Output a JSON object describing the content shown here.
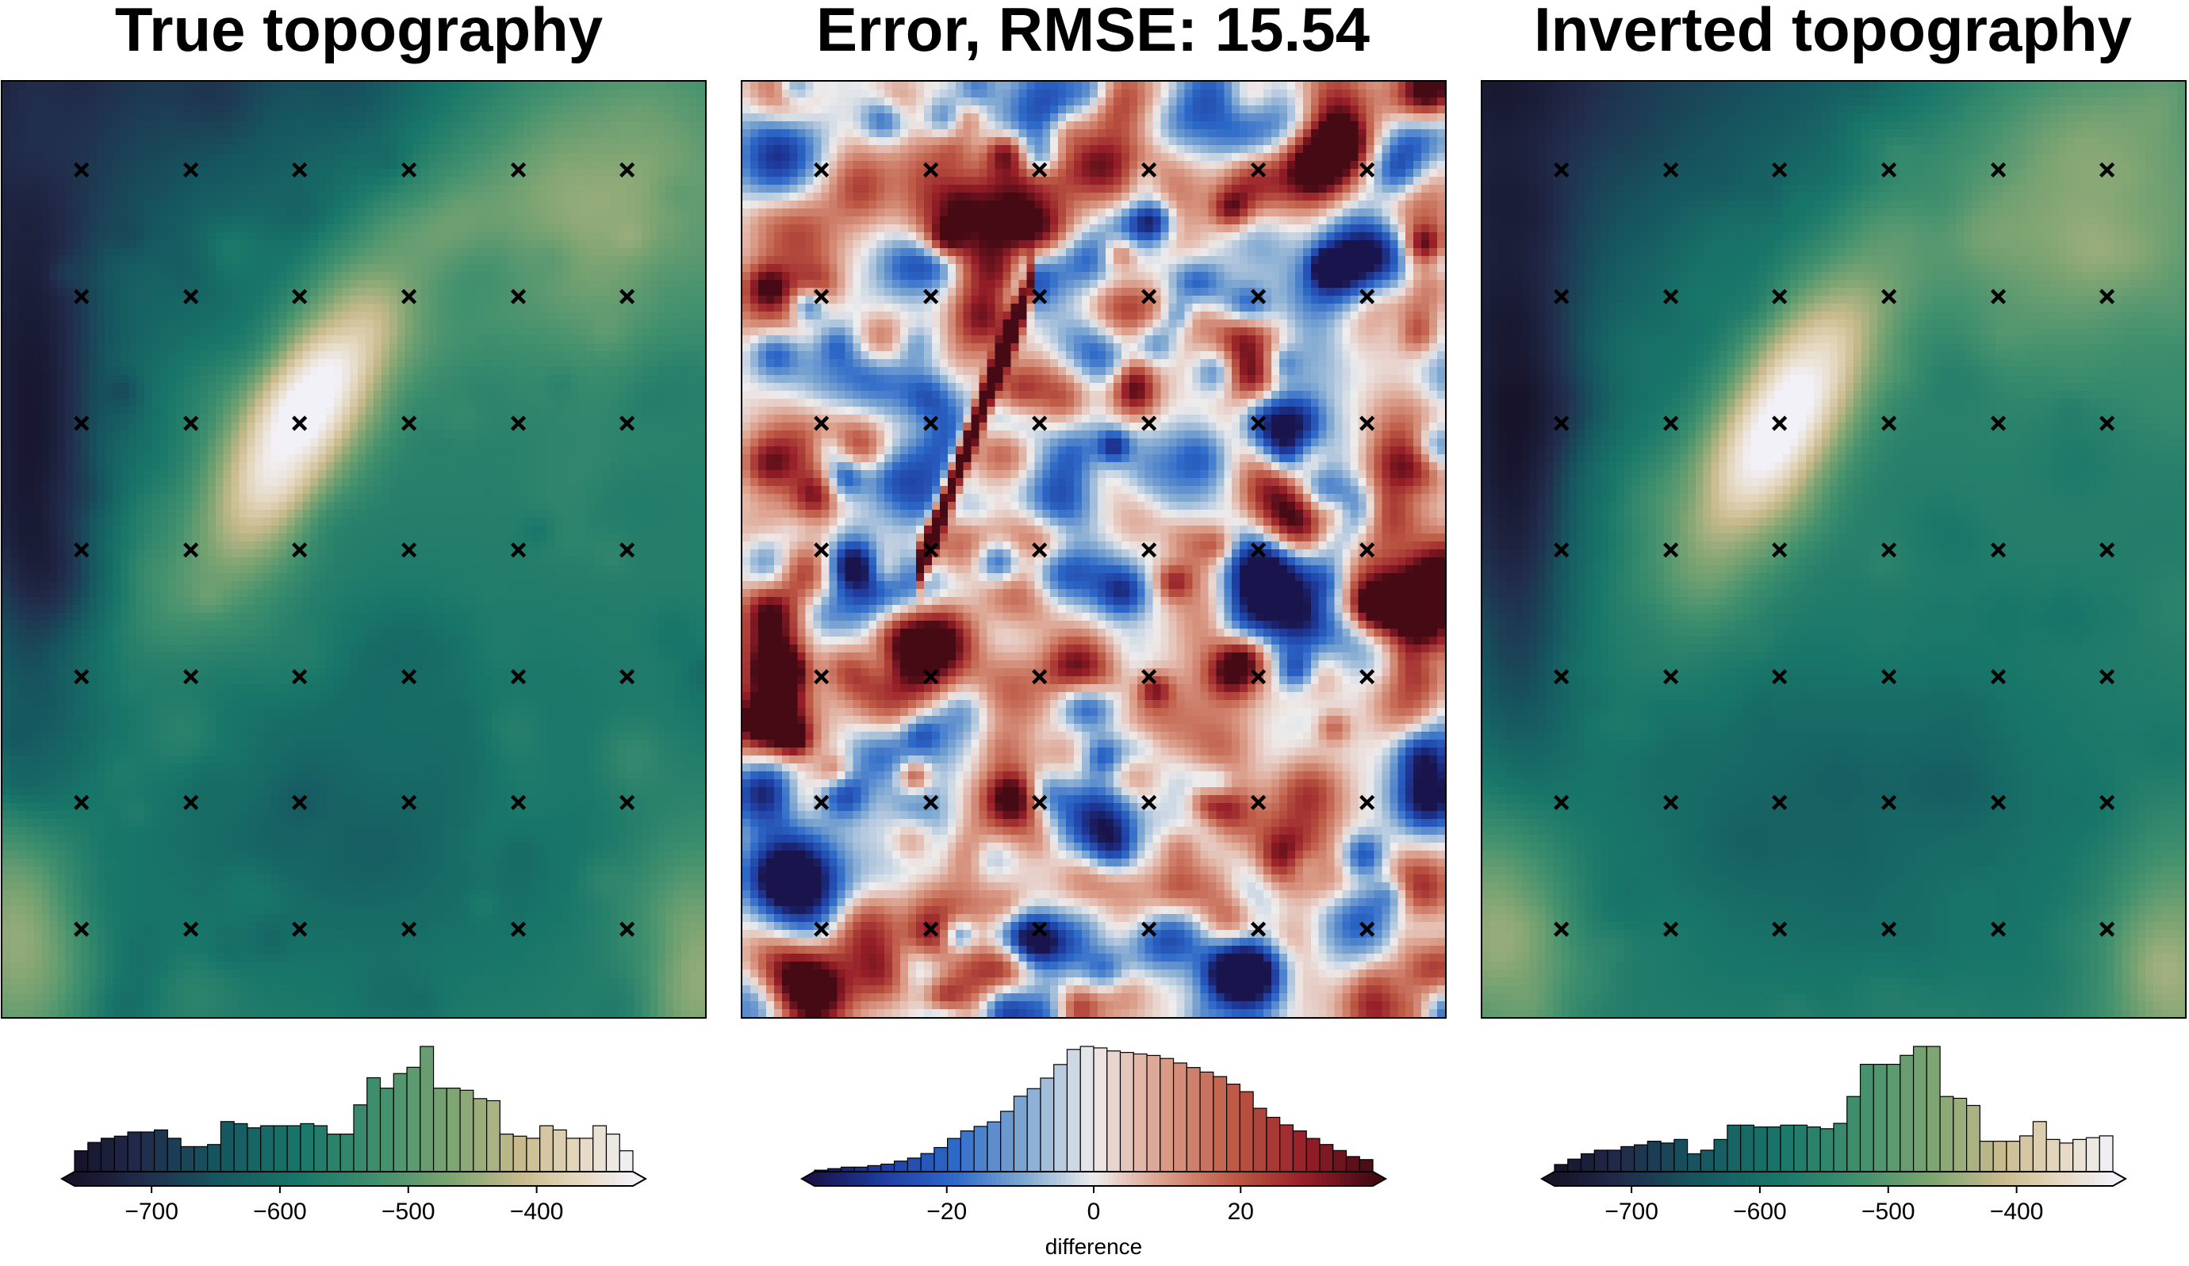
{
  "panels": [
    {
      "id": "true",
      "title": "True topography",
      "colormap": "topo",
      "colorbar": {
        "range": [
          -760,
          -325
        ],
        "ticks": [
          -700,
          -600,
          -500,
          -400
        ],
        "tick_labels": [
          "−700",
          "−600",
          "−500",
          "−400"
        ],
        "label": ""
      }
    },
    {
      "id": "error",
      "title": "Error, RMSE: 15.54",
      "colormap": "balance",
      "colorbar": {
        "range": [
          -38,
          38
        ],
        "ticks": [
          -20,
          0,
          20
        ],
        "tick_labels": [
          "−20",
          "0",
          "20"
        ],
        "label": "difference"
      }
    },
    {
      "id": "inverted",
      "title": "Inverted topography",
      "colormap": "topo",
      "colorbar": {
        "range": [
          -760,
          -325
        ],
        "ticks": [
          -700,
          -600,
          -500,
          -400
        ],
        "tick_labels": [
          "−700",
          "−600",
          "−500",
          "−400"
        ],
        "label": ""
      }
    }
  ],
  "chart_data": [
    {
      "type": "heatmap",
      "title": "True topography",
      "value_range": [
        -760,
        -325
      ],
      "colormap": "topo (dark navy → teal → green → tan → white)",
      "colorbar_ticks": [
        -700,
        -600,
        -500,
        -400
      ],
      "markers": "6 × 7 grid of black × constraint points",
      "histogram_counts": [
        10,
        14,
        16,
        17,
        19,
        19,
        20,
        16,
        12,
        12,
        13,
        24,
        23,
        21,
        22,
        22,
        22,
        23,
        22,
        18,
        18,
        32,
        45,
        40,
        47,
        50,
        60,
        40,
        40,
        39,
        35,
        34,
        18,
        17,
        16,
        22,
        20,
        16,
        16,
        22,
        18,
        10
      ]
    },
    {
      "type": "heatmap",
      "title": "Error, RMSE: 15.54",
      "value_range": [
        -38,
        38
      ],
      "colormap": "balance (blue → white → red)",
      "colorbar_ticks": [
        -20,
        0,
        20
      ],
      "colorbar_label": "difference",
      "markers": "6 × 7 grid of black × constraint points",
      "histogram_counts": [
        1,
        2,
        3,
        3,
        4,
        5,
        7,
        9,
        12,
        16,
        22,
        27,
        30,
        33,
        40,
        50,
        55,
        62,
        71,
        81,
        83,
        82,
        80,
        79,
        78,
        77,
        75,
        72,
        69,
        66,
        63,
        58,
        53,
        42,
        36,
        31,
        27,
        22,
        18,
        14,
        10,
        8
      ]
    },
    {
      "type": "heatmap",
      "title": "Inverted topography",
      "value_range": [
        -760,
        -325
      ],
      "colormap": "topo (dark navy → teal → green → tan → white)",
      "colorbar_ticks": [
        -700,
        -600,
        -500,
        -400
      ],
      "markers": "6 × 7 grid of black × constraint points",
      "histogram_counts": [
        4,
        7,
        10,
        12,
        12,
        14,
        15,
        17,
        16,
        18,
        10,
        12,
        18,
        26,
        26,
        25,
        25,
        26,
        26,
        25,
        24,
        27,
        42,
        60,
        60,
        60,
        65,
        70,
        70,
        42,
        41,
        37,
        17,
        17,
        17,
        20,
        28,
        18,
        16,
        18,
        19,
        20
      ]
    }
  ]
}
